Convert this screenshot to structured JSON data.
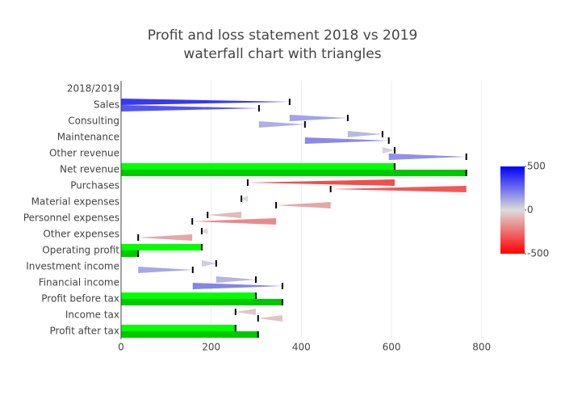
{
  "chart_data": {
    "type": "waterfall",
    "title": [
      "Profit and loss statement 2018 vs 2019",
      "waterfall chart with triangles"
    ],
    "categories": [
      "2018/2019",
      "Sales",
      "Consulting",
      "Maintenance",
      "Other revenue",
      "Net revenue",
      "Purchases",
      "Material expenses",
      "Personnel expenses",
      "Other expenses",
      "Operating profit",
      "Investment income",
      "Financial income",
      "Profit before tax",
      "Income tax",
      "Profit after tax"
    ],
    "measure": [
      null,
      "relative",
      "relative",
      "relative",
      "relative",
      "total",
      "relative",
      "relative",
      "relative",
      "relative",
      "total",
      "relative",
      "relative",
      "total",
      "relative",
      "total"
    ],
    "series": [
      {
        "color": "#00ff00",
        "values": [
          null,
          374,
          129,
          77,
          27,
          607,
          -326,
          -14,
          -75,
          -13,
          179,
          32,
          88,
          299,
          -45,
          254
        ]
      },
      {
        "color": "#00c800",
        "values": [
          null,
          306,
          102,
          186,
          172,
          766,
          -301,
          -121,
          -186,
          -120,
          38,
          121,
          199,
          358,
          -54,
          304
        ]
      }
    ],
    "xlim": [
      0,
      822
    ],
    "xticks": [
      0,
      200,
      400,
      600,
      800
    ],
    "grid": true,
    "colorscale": [
      "#ff0000",
      "#dcdcdc",
      "#0000ff"
    ],
    "clim": [
      -500,
      500
    ],
    "cticks": [
      -500,
      0,
      500
    ]
  }
}
